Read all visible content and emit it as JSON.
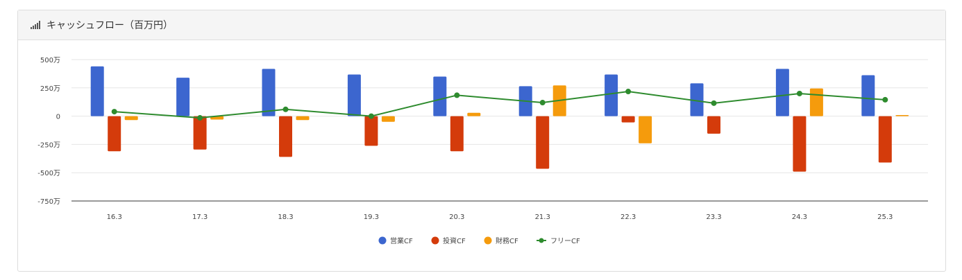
{
  "panel": {
    "title": "キャッシュフロー（百万円）",
    "icon": "bar-signal-icon"
  },
  "chart_data": {
    "type": "bar",
    "categories": [
      "16.3",
      "17.3",
      "18.3",
      "19.3",
      "20.3",
      "21.3",
      "22.3",
      "23.3",
      "24.3",
      "25.3"
    ],
    "y_ticks": [
      {
        "value": 500,
        "label": "500万"
      },
      {
        "value": 250,
        "label": "250万"
      },
      {
        "value": 0,
        "label": "0"
      },
      {
        "value": -250,
        "label": "-250万"
      },
      {
        "value": -500,
        "label": "-500万"
      },
      {
        "value": -750,
        "label": "-750万"
      }
    ],
    "ylim": [
      -750,
      500
    ],
    "grid": true,
    "legend_position": "bottom",
    "series": [
      {
        "name": "営業CF",
        "type": "bar",
        "color": "#3c66cf",
        "values": [
          440,
          340,
          418,
          368,
          350,
          265,
          368,
          290,
          418,
          362
        ]
      },
      {
        "name": "投資CF",
        "type": "bar",
        "color": "#d43b0b",
        "values": [
          -310,
          -295,
          -360,
          -262,
          -310,
          -465,
          -55,
          -155,
          -490,
          -410
        ]
      },
      {
        "name": "財務CF",
        "type": "bar",
        "color": "#f59b0c",
        "values": [
          -35,
          -30,
          -35,
          -50,
          30,
          272,
          -240,
          0,
          245,
          10
        ]
      },
      {
        "name": "フリーCF",
        "type": "line",
        "color": "#2e8b2e",
        "values": [
          40,
          -15,
          60,
          0,
          185,
          120,
          218,
          115,
          200,
          145
        ]
      }
    ]
  }
}
